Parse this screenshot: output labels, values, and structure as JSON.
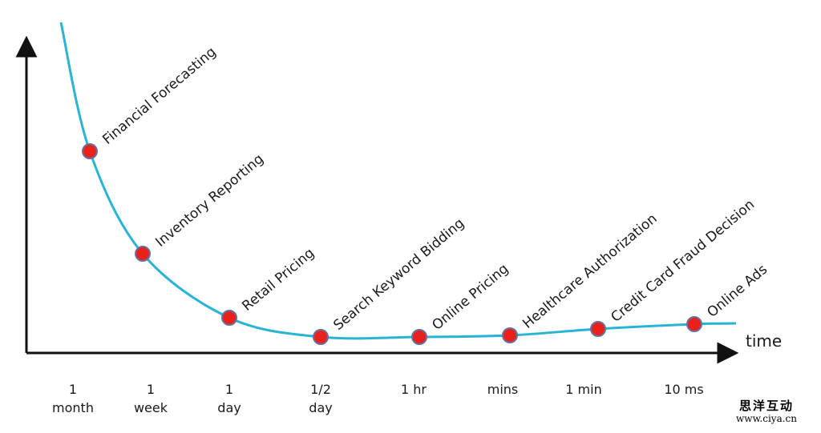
{
  "chart_data": {
    "type": "line",
    "title": "",
    "xlabel": "time",
    "ylabel": "",
    "categories": [
      "1 month",
      "1 week",
      "1 day",
      "1/2 day",
      "1 hr",
      "mins",
      "1 min",
      "10 ms"
    ],
    "tick_lines": [
      [
        "1",
        "month"
      ],
      [
        "1",
        "week"
      ],
      [
        "1",
        "day"
      ],
      [
        "1/2",
        "day"
      ],
      [
        "1 hr"
      ],
      [
        "mins"
      ],
      [
        "1 min"
      ],
      [
        "10 ms"
      ]
    ],
    "points": [
      {
        "category": "1 month",
        "label": "Financial Forecasting",
        "value": 0.63
      },
      {
        "category": "1 week",
        "label": "Inventory Reporting",
        "value": 0.31
      },
      {
        "category": "1 day",
        "label": "Retail Pricing",
        "value": 0.11
      },
      {
        "category": "1/2 day",
        "label": "Search Keyword Bidding",
        "value": 0.05
      },
      {
        "category": "1 hr",
        "label": "Online Pricing",
        "value": 0.05
      },
      {
        "category": "mins",
        "label": "Healthcare Authorization",
        "value": 0.055
      },
      {
        "category": "1 min",
        "label": "Credit Card Fraud Decision",
        "value": 0.075
      },
      {
        "category": "10 ms",
        "label": "Online Ads",
        "value": 0.09
      }
    ],
    "grid": false,
    "colors": {
      "line": "#2ab4d4",
      "marker_fill": "#e8211a",
      "marker_stroke": "#6b6f9e",
      "axis": "#111111"
    }
  },
  "watermark": {
    "chinese": "思洋互动",
    "url": "www.ciya.cn"
  }
}
